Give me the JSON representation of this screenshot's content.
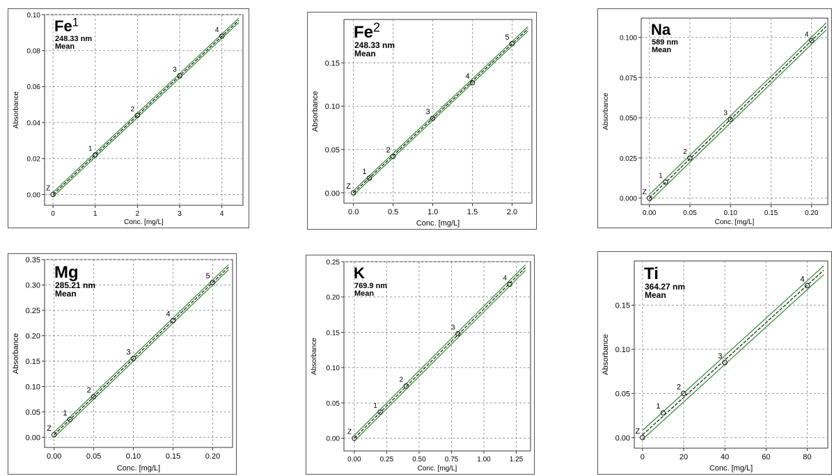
{
  "chart_data": [
    {
      "type": "scatter",
      "element": "Fe",
      "sup": "1",
      "wavelength": "248.33 nm",
      "stat": "Mean",
      "xlabel": "Conc. [mg/L]",
      "ylabel": "Absorbance",
      "xlim": [
        -0.2,
        4.5
      ],
      "ylim": [
        -0.006,
        0.1
      ],
      "xticks": [
        "0",
        "1",
        "2",
        "3",
        "4"
      ],
      "xtickvals": [
        0,
        1,
        2,
        3,
        4
      ],
      "yticks": [
        "0.00",
        "0.02",
        "0.04",
        "0.06",
        "0.08",
        "0.10"
      ],
      "ytickvals": [
        0,
        0.02,
        0.04,
        0.06,
        0.08,
        0.1
      ],
      "points": [
        {
          "label": "Z",
          "x": 0,
          "y": 0.0
        },
        {
          "label": "1",
          "x": 1,
          "y": 0.022
        },
        {
          "label": "2",
          "x": 2,
          "y": 0.044
        },
        {
          "label": "3",
          "x": 3,
          "y": 0.066
        },
        {
          "label": "4",
          "x": 4,
          "y": 0.088
        }
      ],
      "fit": {
        "slope": 0.022,
        "intercept": 0.0,
        "x_end": 4.4,
        "band": 0.0012
      },
      "grid": true
    },
    {
      "type": "scatter",
      "element": "Fe",
      "sup": "2",
      "wavelength": "248.33 nm",
      "stat": "Mean",
      "xlabel": "Conc. [mg/L]",
      "ylabel": "Absorbance",
      "xlim": [
        -0.12,
        2.25
      ],
      "ylim": [
        -0.012,
        0.2
      ],
      "xticks": [
        "0.0",
        "0.5",
        "1.0",
        "1.5",
        "2.0"
      ],
      "xtickvals": [
        0,
        0.5,
        1.0,
        1.5,
        2.0
      ],
      "yticks": [
        "0.00",
        "0.05",
        "0.10",
        "0.15"
      ],
      "ytickvals": [
        0,
        0.05,
        0.1,
        0.15
      ],
      "points": [
        {
          "label": "Z",
          "x": 0,
          "y": 0.0
        },
        {
          "label": "1",
          "x": 0.2,
          "y": 0.017
        },
        {
          "label": "2",
          "x": 0.5,
          "y": 0.042
        },
        {
          "label": "3",
          "x": 1.0,
          "y": 0.086
        },
        {
          "label": "4",
          "x": 1.5,
          "y": 0.127
        },
        {
          "label": "5",
          "x": 2.0,
          "y": 0.172
        }
      ],
      "fit": {
        "slope": 0.086,
        "intercept": 0.0,
        "x_end": 2.2,
        "band": 0.0025
      },
      "grid": true
    },
    {
      "type": "scatter",
      "element": "Na",
      "sup": "",
      "wavelength": "589 nm",
      "stat": "Mean",
      "xlabel": "Conc. [mg/L]",
      "ylabel": "Absorbance",
      "xlim": [
        -0.01,
        0.22
      ],
      "ylim": [
        -0.004,
        0.112
      ],
      "xticks": [
        "0.00",
        "0.05",
        "0.10",
        "0.15",
        "0.20"
      ],
      "xtickvals": [
        0,
        0.05,
        0.1,
        0.15,
        0.2
      ],
      "yticks": [
        "0.000",
        "0.025",
        "0.050",
        "0.075",
        "0.100"
      ],
      "ytickvals": [
        0,
        0.025,
        0.05,
        0.075,
        0.1
      ],
      "points": [
        {
          "label": "Z",
          "x": 0,
          "y": 0.0
        },
        {
          "label": "1",
          "x": 0.02,
          "y": 0.01
        },
        {
          "label": "2",
          "x": 0.05,
          "y": 0.025
        },
        {
          "label": "3",
          "x": 0.1,
          "y": 0.049
        },
        {
          "label": "4",
          "x": 0.2,
          "y": 0.098
        }
      ],
      "fit": {
        "slope": 0.49,
        "intercept": 0.0,
        "x_end": 0.218,
        "band": 0.0022
      },
      "grid": true
    },
    {
      "type": "scatter",
      "element": "Mg",
      "sup": "",
      "wavelength": "285.21 nm",
      "stat": "Mean",
      "xlabel": "Conc. [mg/L]",
      "ylabel": "Absorbance",
      "xlim": [
        -0.012,
        0.225
      ],
      "ylim": [
        -0.02,
        0.35
      ],
      "xticks": [
        "0.00",
        "0.05",
        "0.10",
        "0.15",
        "0.20"
      ],
      "xtickvals": [
        0,
        0.05,
        0.1,
        0.15,
        0.2
      ],
      "yticks": [
        "0.00",
        "0.05",
        "0.10",
        "0.15",
        "0.20",
        "0.25",
        "0.30",
        "0.35"
      ],
      "ytickvals": [
        0,
        0.05,
        0.1,
        0.15,
        0.2,
        0.25,
        0.3,
        0.35
      ],
      "points": [
        {
          "label": "Z",
          "x": 0,
          "y": 0.005
        },
        {
          "label": "1",
          "x": 0.02,
          "y": 0.035
        },
        {
          "label": "2",
          "x": 0.05,
          "y": 0.08
        },
        {
          "label": "3",
          "x": 0.1,
          "y": 0.155
        },
        {
          "label": "4",
          "x": 0.15,
          "y": 0.23
        },
        {
          "label": "5",
          "x": 0.2,
          "y": 0.305
        }
      ],
      "fit": {
        "slope": 1.5,
        "intercept": 0.005,
        "x_end": 0.22,
        "band": 0.005
      },
      "grid": true
    },
    {
      "type": "scatter",
      "element": "K",
      "sup": "",
      "wavelength": "769.9 nm",
      "stat": "Mean",
      "xlabel": "Conc. [mg/L]",
      "ylabel": "Absorbance",
      "xlim": [
        -0.08,
        1.36
      ],
      "ylim": [
        -0.018,
        0.25
      ],
      "xticks": [
        "0.00",
        "0.25",
        "0.50",
        "0.75",
        "1.00",
        "1.25"
      ],
      "xtickvals": [
        0,
        0.25,
        0.5,
        0.75,
        1.0,
        1.25
      ],
      "yticks": [
        "0.00",
        "0.05",
        "0.10",
        "0.15",
        "0.20",
        "0.25"
      ],
      "ytickvals": [
        0,
        0.05,
        0.1,
        0.15,
        0.2,
        0.25
      ],
      "points": [
        {
          "label": "Z",
          "x": 0,
          "y": 0.0
        },
        {
          "label": "1",
          "x": 0.2,
          "y": 0.037
        },
        {
          "label": "2",
          "x": 0.4,
          "y": 0.074
        },
        {
          "label": "3",
          "x": 0.8,
          "y": 0.148
        },
        {
          "label": "4",
          "x": 1.2,
          "y": 0.218
        }
      ],
      "fit": {
        "slope": 0.183,
        "intercept": 0.0,
        "x_end": 1.32,
        "band": 0.004
      },
      "grid": true
    },
    {
      "type": "scatter",
      "element": "Ti",
      "sup": "",
      "wavelength": "364.27 nm",
      "stat": "Mean",
      "xlabel": "Conc. [mg/L]",
      "ylabel": "Absorbance",
      "xlim": [
        -4,
        90
      ],
      "ylim": [
        -0.012,
        0.2
      ],
      "xticks": [
        "0",
        "20",
        "40",
        "60",
        "80"
      ],
      "xtickvals": [
        0,
        20,
        40,
        60,
        80
      ],
      "yticks": [
        "0.00",
        "0.05",
        "0.10",
        "0.15"
      ],
      "ytickvals": [
        0,
        0.05,
        0.1,
        0.15
      ],
      "points": [
        {
          "label": "Z",
          "x": 0,
          "y": 0.0
        },
        {
          "label": "1",
          "x": 10,
          "y": 0.028
        },
        {
          "label": "2",
          "x": 20,
          "y": 0.05
        },
        {
          "label": "3",
          "x": 40,
          "y": 0.085
        },
        {
          "label": "4",
          "x": 80,
          "y": 0.172
        }
      ],
      "fit": {
        "slope": 0.00212,
        "intercept": 0.003,
        "x_end": 88,
        "band": 0.005
      },
      "grid": true
    }
  ]
}
